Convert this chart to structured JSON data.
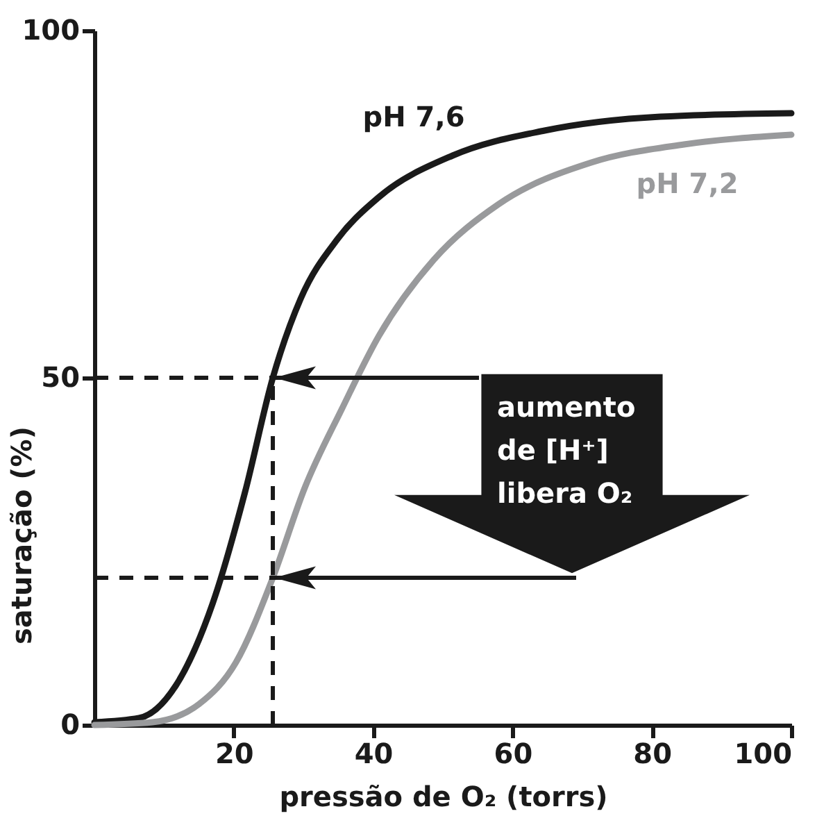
{
  "chart_data": {
    "type": "line",
    "xlabel": "pressão de O₂ (torrs)",
    "ylabel": "saturação (%)",
    "xlim": [
      0,
      100
    ],
    "xticks": [
      20,
      40,
      60,
      80,
      100
    ],
    "ylim": [
      0,
      100
    ],
    "yticks": [
      0,
      50,
      100
    ],
    "grid": false,
    "legend": false,
    "marker": "none",
    "line_style": "solid",
    "series": [
      {
        "name": "pH 7,6",
        "color": "#1a1a1a",
        "x": [
          0,
          6.4,
          11.7,
          17,
          21.6,
          25.6,
          29.6,
          34.9,
          40.8,
          51.4,
          64.6,
          81.2,
          100
        ],
        "values": [
          0.4,
          1,
          5.7,
          17.6,
          33.5,
          50,
          61.4,
          70,
          76,
          82,
          85.6,
          87.6,
          88.1
        ]
      },
      {
        "name": "pH 7,2",
        "color": "#999a9c",
        "x": [
          0,
          8.3,
          15,
          20.3,
          25.6,
          30.2,
          35.5,
          40.8,
          48.7,
          58,
          71.3,
          84.6,
          100
        ],
        "values": [
          0,
          0.4,
          3,
          9,
          21.2,
          34.2,
          45.5,
          56,
          67,
          75,
          81,
          83.6,
          85
        ]
      }
    ],
    "ref_lines": [
      {
        "axis": "y",
        "value": 50,
        "color": "#1a1a1a",
        "line_style": "dashed"
      },
      {
        "axis": "y",
        "value": 21.2,
        "color": "#1a1a1a",
        "line_style": "dashed"
      },
      {
        "axis": "x",
        "value": 25.6,
        "color": "#1a1a1a",
        "line_style": "dashed"
      }
    ],
    "annotations": [
      {
        "text": "aumento\nde [H⁺]\nlibera O₂",
        "x": 25.6,
        "y": 50
      }
    ]
  }
}
